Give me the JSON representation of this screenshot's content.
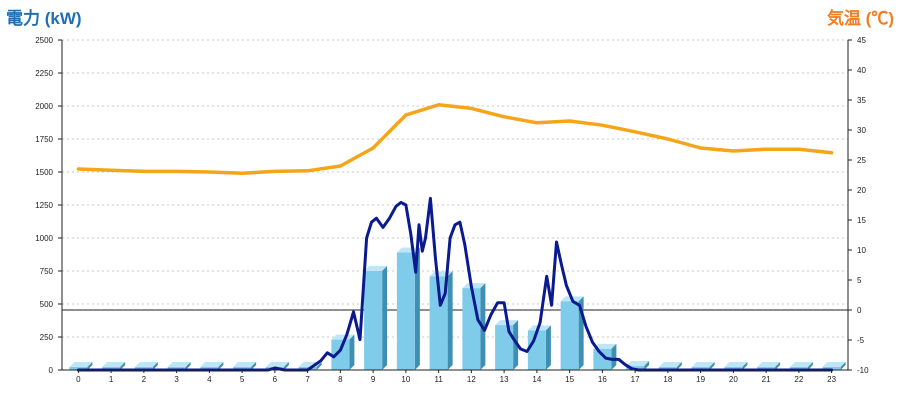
{
  "chart_data": {
    "type": "bar",
    "title_left": "電力 (kW)",
    "title_right": "気温 (℃)",
    "left_axis": {
      "min": 0,
      "max": 2500,
      "step": 250,
      "ticks": [
        "0",
        "250",
        "500",
        "750",
        "1000",
        "1250",
        "1500",
        "1750",
        "2000",
        "2250",
        "2500"
      ]
    },
    "right_axis": {
      "min": -10,
      "max": 45,
      "step": 5,
      "ticks": [
        "-10",
        "-5",
        "0",
        "5",
        "10",
        "15",
        "20",
        "25",
        "30",
        "35",
        "40",
        "45"
      ]
    },
    "categories": [
      "0",
      "1",
      "2",
      "3",
      "4",
      "5",
      "6",
      "7",
      "8",
      "9",
      "10",
      "11",
      "12",
      "13",
      "14",
      "15",
      "16",
      "17",
      "18",
      "19",
      "20",
      "21",
      "22",
      "23"
    ],
    "series": [
      {
        "type": "bar",
        "axis": "left",
        "color": "#7fcbea",
        "values": [
          0,
          0,
          0,
          0,
          0,
          0,
          0,
          0,
          230,
          750,
          890,
          710,
          620,
          340,
          300,
          520,
          160,
          30,
          0,
          0,
          0,
          0,
          0,
          0
        ]
      },
      {
        "type": "line",
        "axis": "left",
        "color": "#0b1a8e",
        "x": [
          0,
          1,
          2,
          3,
          4,
          5,
          5.8,
          6,
          6.3,
          7,
          7.4,
          7.6,
          7.8,
          8,
          8.2,
          8.4,
          8.6,
          8.8,
          8.95,
          9.1,
          9.3,
          9.5,
          9.7,
          9.85,
          10,
          10.15,
          10.3,
          10.4,
          10.5,
          10.6,
          10.75,
          10.9,
          11.05,
          11.2,
          11.35,
          11.5,
          11.65,
          11.8,
          12,
          12.2,
          12.4,
          12.6,
          12.8,
          13,
          13.15,
          13.3,
          13.5,
          13.7,
          13.9,
          14.1,
          14.3,
          14.45,
          14.6,
          14.75,
          14.9,
          15.1,
          15.3,
          15.5,
          15.7,
          15.9,
          16.1,
          16.3,
          16.5,
          16.7,
          16.9,
          17.1,
          17.3,
          17.5,
          18,
          19,
          20,
          21,
          22,
          23
        ],
        "values": [
          0,
          0,
          0,
          0,
          0,
          0,
          0,
          15,
          0,
          0,
          70,
          130,
          100,
          150,
          270,
          440,
          230,
          1000,
          1120,
          1150,
          1080,
          1150,
          1240,
          1270,
          1250,
          1030,
          740,
          1100,
          900,
          1000,
          1300,
          850,
          490,
          580,
          1000,
          1100,
          1120,
          950,
          630,
          380,
          300,
          420,
          510,
          510,
          290,
          230,
          160,
          140,
          220,
          360,
          710,
          490,
          970,
          800,
          640,
          520,
          490,
          330,
          210,
          140,
          90,
          80,
          80,
          40,
          10,
          0,
          0,
          0,
          0,
          0,
          0,
          0,
          0,
          0
        ]
      },
      {
        "type": "line",
        "axis": "right",
        "color": "#f5a519",
        "x": [
          0,
          1,
          2,
          3,
          4,
          5,
          6,
          7,
          8,
          9,
          10,
          11,
          12,
          13,
          14,
          15,
          16,
          17,
          18,
          19,
          20,
          21,
          22,
          23
        ],
        "values": [
          23.5,
          23.3,
          23.1,
          23.1,
          23.0,
          22.8,
          23.1,
          23.2,
          24.0,
          27.0,
          32.5,
          34.2,
          33.6,
          32.2,
          31.2,
          31.5,
          30.8,
          29.7,
          28.5,
          27.0,
          26.5,
          26.8,
          26.8,
          26.2
        ]
      }
    ]
  }
}
